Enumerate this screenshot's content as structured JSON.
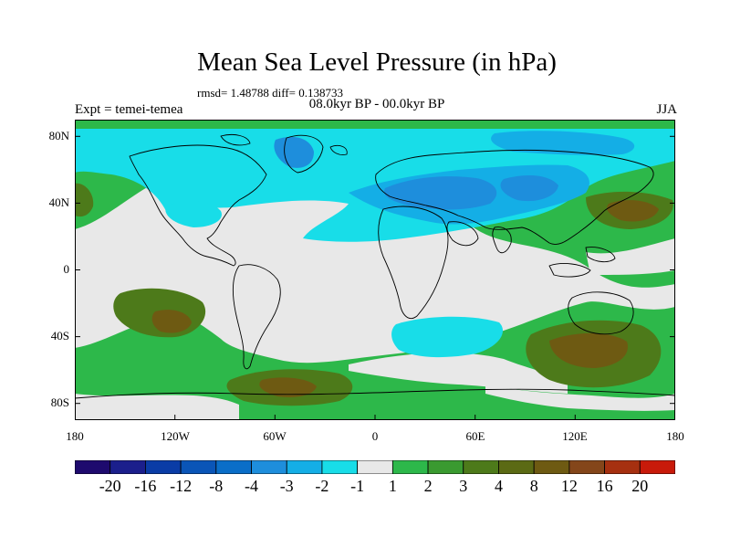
{
  "title": "Mean Sea Level Pressure (in hPa)",
  "stats": "rmsd= 1.48788 diff= 0.138733",
  "experiment": "Expt = temei-temea",
  "period": "08.0kyr BP - 00.0kyr BP",
  "season": "JJA",
  "y_axis_labels": [
    "80N",
    "40N",
    "0",
    "40S",
    "80S"
  ],
  "x_axis_labels": [
    "180",
    "120W",
    "60W",
    "0",
    "60E",
    "120E",
    "180"
  ],
  "colorbar": {
    "colors": [
      "#1e0a6e",
      "#1b1f8c",
      "#0a3ca6",
      "#0a55b7",
      "#0a6ec8",
      "#1e8edc",
      "#14aee6",
      "#18dde8",
      "#e8e8e8",
      "#2db84a",
      "#3a9a30",
      "#4d7a1a",
      "#5b6a14",
      "#6e5a12",
      "#84461a",
      "#a63010",
      "#c81a0a"
    ],
    "labels": [
      "-20",
      "-16",
      "-12",
      "-8",
      "-4",
      "-3",
      "-2",
      "-1",
      "1",
      "2",
      "3",
      "4",
      "8",
      "12",
      "16",
      "20"
    ]
  },
  "palette": {
    "ocean_base": "#2db84a",
    "land_neutral": "#e8e8e8",
    "low_light": "#18dde8",
    "low_medium": "#14aee6",
    "low_strong": "#1e8edc",
    "high_dark": "#4d7a1a",
    "high_darker": "#6e5a12"
  }
}
